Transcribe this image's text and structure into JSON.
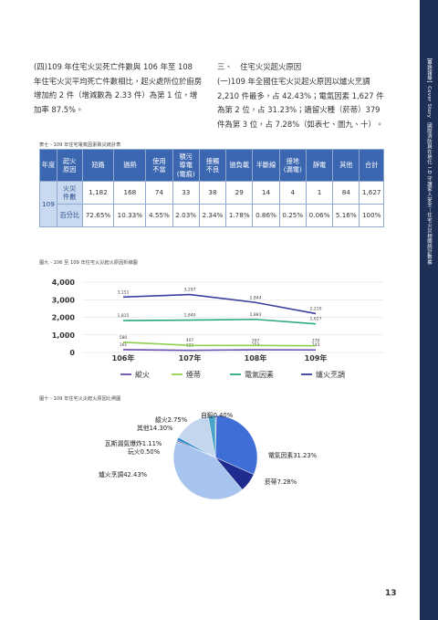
{
  "sidebar": "【專題報導】Cover Story　國際消防與在地化 I.D 守護家人安全－住宅火災相關統計數據",
  "left_paragraph": "(四)109 年住宅火災死亡件數與 106 年至 108 年住宅火災平均死亡件數相比，起火處所位於廚房增加約 2 件（增減數為 2.33 件）為第 1 位，增加率 87.5%。",
  "section_heading": "三、　住宅火災起火原因",
  "right_paragraph": "(一)109 年全國住宅火災起火原因以爐火烹調 2,210 件最多，占 42.43%；電氣因素 1,627 件為第 2 位，占 31.23%；遺留火種（菸蒂）379 件為第 3 位，占 7.28%（如表七、圖九、十）。",
  "table": {
    "caption": "表七、109 年住宅電氣因素致災統計表",
    "header": [
      "年度",
      "起火\n原因",
      "短路",
      "過熱",
      "使用\n不當",
      "積污\n導電\n(電痕)",
      "接觸\n不良",
      "過負載",
      "半斷線",
      "接地\n(漏電)",
      "靜電",
      "其他",
      "合計"
    ],
    "year": "109",
    "rows": [
      [
        "火災\n件數",
        "1,182",
        "168",
        "74",
        "33",
        "38",
        "29",
        "14",
        "4",
        "1",
        "84",
        "1,627"
      ],
      [
        "百分比",
        "72.65%",
        "10.33%",
        "4.55%",
        "2.03%",
        "2.34%",
        "1.78%",
        "0.86%",
        "0.25%",
        "0.06%",
        "5.16%",
        "100%"
      ]
    ]
  },
  "figure9_caption": "圖九、106 至 109 年住宅火災起火原因折線圖",
  "figure10_caption": "圖十、109 年住宅火災起火原因比例圖",
  "chart_data": [
    {
      "type": "line",
      "categories": [
        "106年",
        "107年",
        "108年",
        "109年"
      ],
      "ylim": [
        0,
        4000
      ],
      "yticks": [
        0,
        {
          "value": 1000,
          "label": "1,000"
        },
        {
          "value": 2000,
          "label": "2,000"
        },
        {
          "value": 3000,
          "label": "3,000"
        },
        {
          "value": 4000,
          "label": "4,000"
        }
      ],
      "grid": true,
      "series": [
        {
          "name": "縱火",
          "color": "#6a4fb3",
          "values": [
            161,
            122,
            153,
            143
          ]
        },
        {
          "name": "煙蒂",
          "color": "#8fd14f",
          "values": [
            580,
            407,
            397,
            379
          ]
        },
        {
          "name": "電氣因素",
          "color": "#2eaa7a",
          "values": [
            1815,
            1840,
            1883,
            1627
          ]
        },
        {
          "name": "爐火烹調",
          "color": "#3b3f9e",
          "values": [
            3151,
            3297,
            2844,
            2210
          ],
          "value_labels": [
            "3,151",
            "3,297",
            "2,844",
            "2,210"
          ]
        }
      ],
      "series_value_labels": [
        [
          "161",
          "122",
          "153",
          "143"
        ],
        [
          "580",
          "407",
          "397",
          "379"
        ],
        [
          "1,815",
          "1,840",
          "1,883",
          "1,627"
        ]
      ]
    },
    {
      "type": "pie",
      "categories": [
        "自殺",
        "電氣因素",
        "菸蒂",
        "爐火烹調",
        "玩火",
        "瓦斯漏氣爆炸",
        "其他",
        "縱火"
      ],
      "values": [
        0.4,
        31.23,
        7.28,
        42.43,
        0.5,
        1.11,
        14.3,
        2.75
      ],
      "value_labels": [
        "0.40%",
        "31.23%",
        "7.28%",
        "42.43%",
        "0.50%",
        "1.11%",
        "14.30%",
        "2.75%"
      ],
      "colors": [
        "#1b3f7a",
        "#3f6fd6",
        "#1f2b8f",
        "#a7c4ef",
        "#2d3f7c",
        "#2a8ad0",
        "#c4d6ee",
        "#4aa3c9"
      ]
    }
  ],
  "page_number": "13"
}
